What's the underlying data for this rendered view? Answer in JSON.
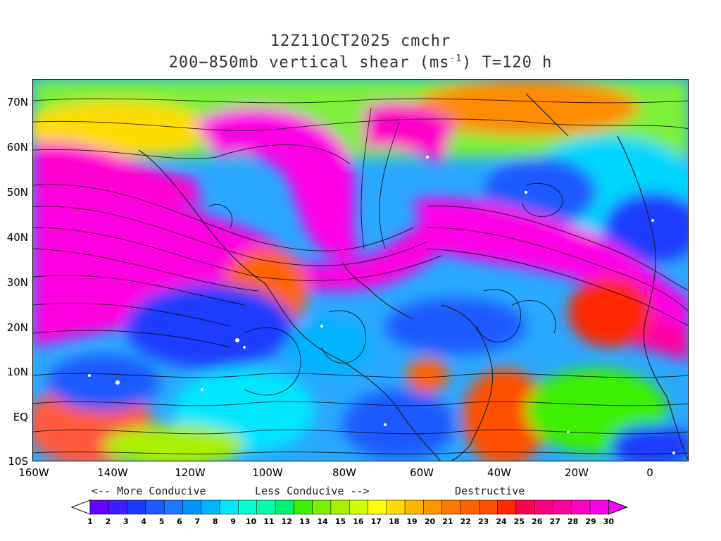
{
  "title": {
    "line1": "12Z11OCT2025 cmchr",
    "line2_prefix": "200−850mb vertical shear (ms",
    "line2_sup": "-1",
    "line2_suffix": ") T=120 h"
  },
  "axes": {
    "y_labels": [
      "70N",
      "60N",
      "50N",
      "40N",
      "30N",
      "20N",
      "10N",
      "EQ",
      "10S"
    ],
    "x_labels": [
      "160W",
      "140W",
      "120W",
      "100W",
      "80W",
      "60W",
      "40W",
      "20W",
      "0"
    ]
  },
  "legend": {
    "more_conducive": "<-- More Conducive",
    "less_conducive": "Less Conducive -->",
    "destructive": "Destructive",
    "values": [
      "1",
      "2",
      "3",
      "4",
      "5",
      "6",
      "7",
      "8",
      "9",
      "10",
      "11",
      "12",
      "13",
      "14",
      "15",
      "16",
      "17",
      "18",
      "19",
      "20",
      "21",
      "22",
      "23",
      "24",
      "25",
      "26",
      "27",
      "28",
      "29",
      "30"
    ],
    "colors": [
      "#ffffff",
      "#6a00ff",
      "#3c1eff",
      "#1e3cff",
      "#1e5aff",
      "#1e78ff",
      "#0096ff",
      "#00b4ff",
      "#00e6ff",
      "#00ffd2",
      "#00ffaa",
      "#00f070",
      "#3cf000",
      "#78f000",
      "#aaf000",
      "#d2ff00",
      "#ffff00",
      "#ffdc00",
      "#ffb400",
      "#ff9600",
      "#ff7800",
      "#ff6400",
      "#ff5000",
      "#ff2800",
      "#ff0050",
      "#ff0080",
      "#ff00a0",
      "#ff00c8",
      "#ff00e6",
      "#ff00ff"
    ]
  }
}
